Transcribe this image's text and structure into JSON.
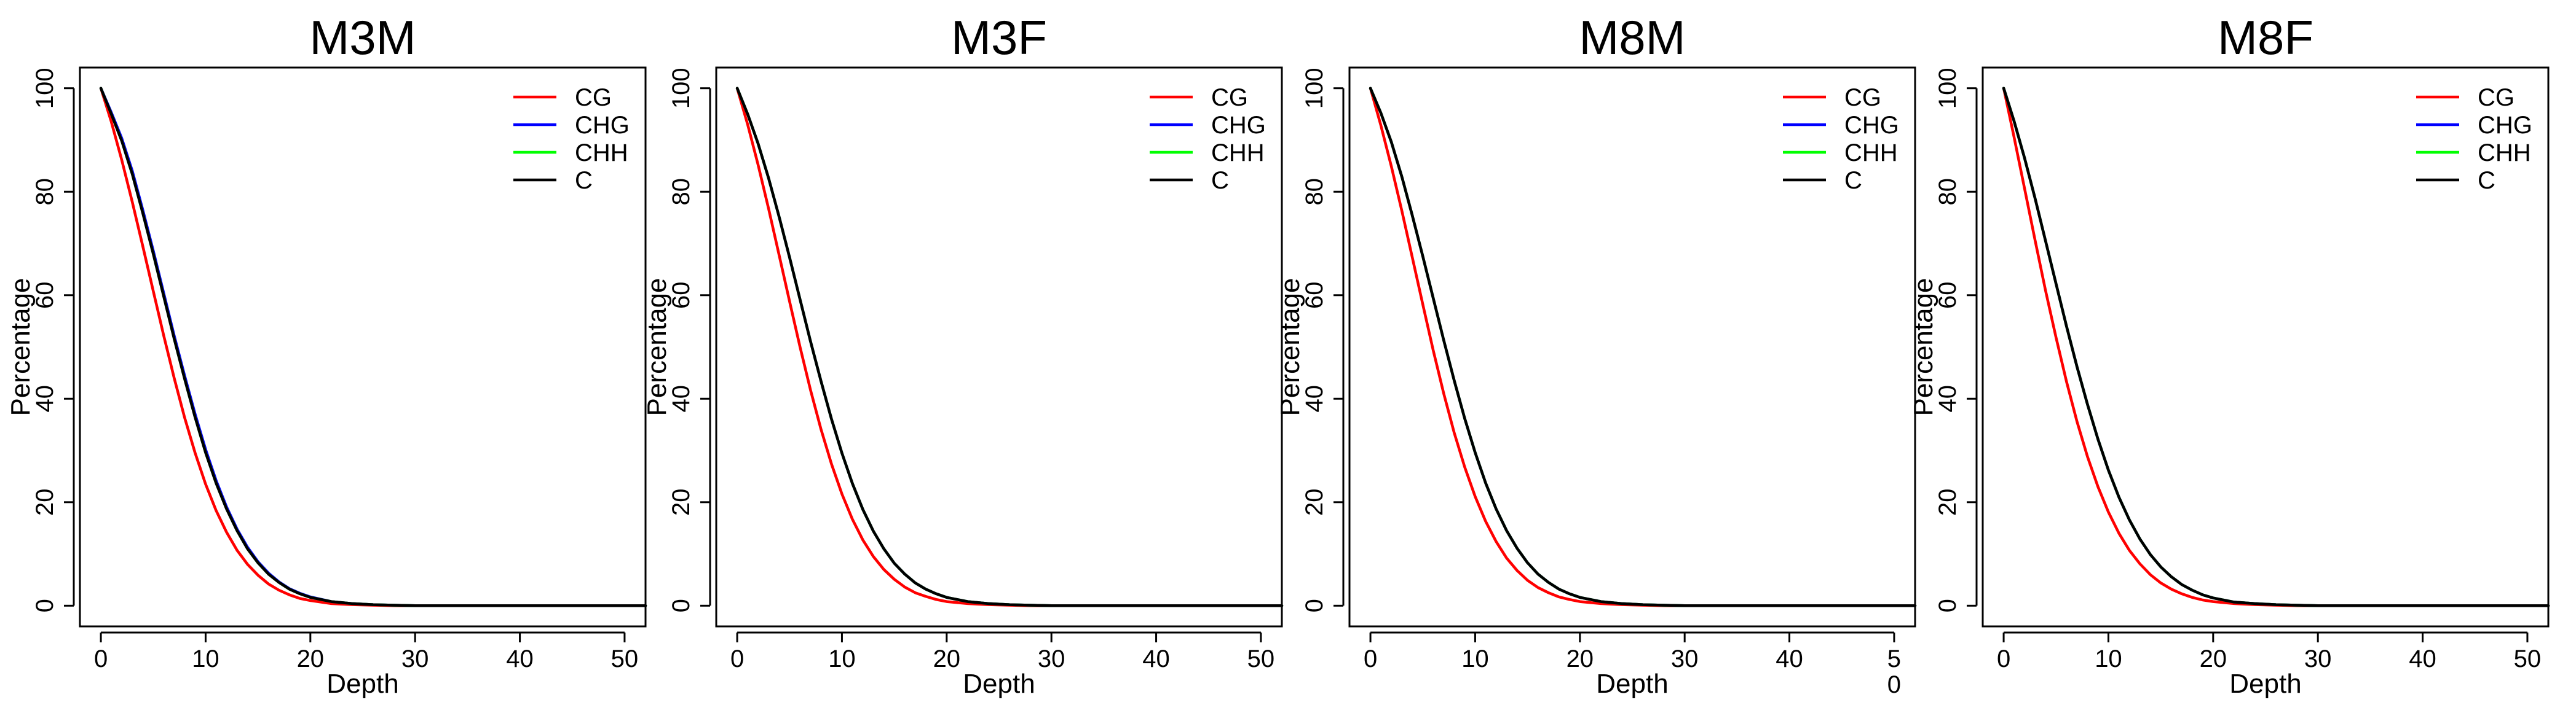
{
  "chart_data": [
    {
      "type": "line",
      "title": "M3M",
      "xlabel": "Depth",
      "ylabel": "Percentage",
      "xlim": [
        -2,
        52
      ],
      "ylim": [
        -4,
        104
      ],
      "xticks": [
        0,
        10,
        20,
        30,
        40,
        50
      ],
      "yticks": [
        0,
        20,
        40,
        60,
        80,
        100
      ],
      "xtick_labels": [
        "0",
        "10",
        "20",
        "30",
        "40",
        "50"
      ],
      "legend_position": "top-right",
      "x": [
        0,
        1,
        2,
        3,
        4,
        5,
        6,
        7,
        8,
        9,
        10,
        11,
        12,
        13,
        14,
        15,
        16,
        17,
        18,
        19,
        20,
        22,
        24,
        26,
        28,
        30,
        35,
        40,
        45,
        52
      ],
      "series": [
        {
          "name": "CG",
          "color": "#ff0000",
          "values": [
            100,
            93.5,
            86.1,
            78.0,
            69.5,
            60.8,
            52.2,
            44.0,
            36.3,
            29.5,
            23.5,
            18.4,
            14.2,
            10.7,
            8.0,
            5.9,
            4.2,
            3.0,
            2.1,
            1.4,
            1.0,
            0.4,
            0.2,
            0.1,
            0.0,
            0.0,
            0.0,
            0.0,
            0.0,
            0.0
          ]
        },
        {
          "name": "CHG",
          "color": "#0000ff",
          "values": [
            100,
            95.3,
            90.3,
            84.0,
            76.5,
            68.6,
            60.4,
            52.2,
            44.4,
            37.0,
            30.2,
            24.2,
            19.1,
            14.8,
            11.3,
            8.5,
            6.3,
            4.6,
            3.3,
            2.4,
            1.7,
            0.8,
            0.4,
            0.2,
            0.1,
            0.0,
            0.0,
            0.0,
            0.0,
            0.0
          ]
        },
        {
          "name": "CHH",
          "color": "#00ff00",
          "values": [
            100,
            95.0,
            89.8,
            83.4,
            75.9,
            68.0,
            59.8,
            51.6,
            43.8,
            36.4,
            29.6,
            23.7,
            18.7,
            14.5,
            11.0,
            8.3,
            6.1,
            4.5,
            3.2,
            2.3,
            1.6,
            0.8,
            0.4,
            0.2,
            0.1,
            0.0,
            0.0,
            0.0,
            0.0,
            0.0
          ]
        },
        {
          "name": "C",
          "color": "#000000",
          "values": [
            100,
            95.0,
            89.8,
            83.4,
            75.9,
            68.0,
            59.8,
            51.6,
            43.8,
            36.4,
            29.6,
            23.7,
            18.7,
            14.5,
            11.0,
            8.3,
            6.1,
            4.5,
            3.2,
            2.3,
            1.6,
            0.8,
            0.4,
            0.2,
            0.1,
            0.0,
            0.0,
            0.0,
            0.0,
            0.0
          ]
        }
      ]
    },
    {
      "type": "line",
      "title": "M3F",
      "xlabel": "Depth",
      "ylabel": "Percentage",
      "xlim": [
        -2,
        52
      ],
      "ylim": [
        -4,
        104
      ],
      "xticks": [
        0,
        10,
        20,
        30,
        40,
        50
      ],
      "yticks": [
        0,
        20,
        40,
        60,
        80,
        100
      ],
      "xtick_labels": [
        "0",
        "10",
        "20",
        "30",
        "40",
        "50"
      ],
      "legend_position": "top-right",
      "x": [
        0,
        1,
        2,
        3,
        4,
        5,
        6,
        7,
        8,
        9,
        10,
        11,
        12,
        13,
        14,
        15,
        16,
        17,
        18,
        19,
        20,
        22,
        24,
        26,
        28,
        30,
        35,
        40,
        45,
        52
      ],
      "series": [
        {
          "name": "CG",
          "color": "#ff0000",
          "values": [
            100,
            93.0,
            85.2,
            76.7,
            67.8,
            58.8,
            50.0,
            41.7,
            34.1,
            27.4,
            21.6,
            16.7,
            12.7,
            9.5,
            7.0,
            5.1,
            3.6,
            2.5,
            1.8,
            1.2,
            0.8,
            0.4,
            0.2,
            0.1,
            0.0,
            0.0,
            0.0,
            0.0,
            0.0,
            0.0
          ]
        },
        {
          "name": "CHG",
          "color": "#0000ff",
          "values": [
            100,
            95.0,
            89.3,
            82.6,
            75.2,
            67.3,
            59.2,
            51.1,
            43.4,
            36.1,
            29.5,
            23.6,
            18.6,
            14.4,
            11.0,
            8.2,
            6.1,
            4.4,
            3.2,
            2.3,
            1.6,
            0.8,
            0.4,
            0.2,
            0.1,
            0.0,
            0.0,
            0.0,
            0.0,
            0.0
          ]
        },
        {
          "name": "CHH",
          "color": "#00ff00",
          "values": [
            100,
            95.0,
            89.3,
            82.6,
            75.2,
            67.3,
            59.2,
            51.1,
            43.4,
            36.1,
            29.5,
            23.6,
            18.6,
            14.4,
            11.0,
            8.2,
            6.1,
            4.4,
            3.2,
            2.3,
            1.6,
            0.8,
            0.4,
            0.2,
            0.1,
            0.0,
            0.0,
            0.0,
            0.0,
            0.0
          ]
        },
        {
          "name": "C",
          "color": "#000000",
          "values": [
            100,
            95.0,
            89.3,
            82.6,
            75.2,
            67.3,
            59.2,
            51.1,
            43.4,
            36.1,
            29.5,
            23.6,
            18.6,
            14.4,
            11.0,
            8.2,
            6.1,
            4.4,
            3.2,
            2.3,
            1.6,
            0.8,
            0.4,
            0.2,
            0.1,
            0.0,
            0.0,
            0.0,
            0.0,
            0.0
          ]
        }
      ]
    },
    {
      "type": "line",
      "title": "M8M",
      "xlabel": "Depth",
      "ylabel": "Percentage",
      "xlim": [
        -2,
        52
      ],
      "ylim": [
        -4,
        104
      ],
      "xticks": [
        0,
        10,
        20,
        30,
        40,
        50
      ],
      "yticks": [
        0,
        20,
        40,
        60,
        80,
        100
      ],
      "xtick_labels": [
        "0",
        "10",
        "20",
        "30",
        "40",
        "5\n0"
      ],
      "legend_position": "top-right",
      "x": [
        0,
        1,
        2,
        3,
        4,
        5,
        6,
        7,
        8,
        9,
        10,
        11,
        12,
        13,
        14,
        15,
        16,
        17,
        18,
        19,
        20,
        22,
        24,
        26,
        28,
        30,
        35,
        40,
        45,
        52
      ],
      "series": [
        {
          "name": "CG",
          "color": "#ff0000",
          "values": [
            100,
            92.8,
            84.9,
            76.3,
            67.3,
            58.2,
            49.3,
            41.0,
            33.4,
            26.8,
            21.1,
            16.3,
            12.4,
            9.2,
            6.8,
            4.9,
            3.5,
            2.5,
            1.7,
            1.2,
            0.8,
            0.4,
            0.2,
            0.1,
            0.0,
            0.0,
            0.0,
            0.0,
            0.0,
            0.0
          ]
        },
        {
          "name": "CHG",
          "color": "#0000ff",
          "values": [
            100,
            95.2,
            89.6,
            82.9,
            75.4,
            67.5,
            59.4,
            51.3,
            43.5,
            36.2,
            29.6,
            23.7,
            18.7,
            14.5,
            11.1,
            8.3,
            6.1,
            4.5,
            3.2,
            2.3,
            1.6,
            0.8,
            0.4,
            0.2,
            0.1,
            0.0,
            0.0,
            0.0,
            0.0,
            0.0
          ]
        },
        {
          "name": "CHH",
          "color": "#00ff00",
          "values": [
            100,
            95.2,
            89.6,
            82.9,
            75.4,
            67.5,
            59.4,
            51.3,
            43.5,
            36.2,
            29.6,
            23.7,
            18.7,
            14.5,
            11.1,
            8.3,
            6.1,
            4.5,
            3.2,
            2.3,
            1.6,
            0.8,
            0.4,
            0.2,
            0.1,
            0.0,
            0.0,
            0.0,
            0.0,
            0.0
          ]
        },
        {
          "name": "C",
          "color": "#000000",
          "values": [
            100,
            95.2,
            89.6,
            82.9,
            75.4,
            67.5,
            59.4,
            51.3,
            43.5,
            36.2,
            29.6,
            23.7,
            18.7,
            14.5,
            11.1,
            8.3,
            6.1,
            4.5,
            3.2,
            2.3,
            1.6,
            0.8,
            0.4,
            0.2,
            0.1,
            0.0,
            0.0,
            0.0,
            0.0,
            0.0
          ]
        }
      ]
    },
    {
      "type": "line",
      "title": "M8F",
      "xlabel": "Depth",
      "ylabel": "Percentage",
      "xlim": [
        -2,
        52
      ],
      "ylim": [
        -4,
        104
      ],
      "xticks": [
        0,
        10,
        20,
        30,
        40,
        50
      ],
      "yticks": [
        0,
        20,
        40,
        60,
        80,
        100
      ],
      "xtick_labels": [
        "0",
        "10",
        "20",
        "30",
        "40",
        "50"
      ],
      "legend_position": "top-right",
      "x": [
        0,
        1,
        2,
        3,
        4,
        5,
        6,
        7,
        8,
        9,
        10,
        11,
        12,
        13,
        14,
        15,
        16,
        17,
        18,
        19,
        20,
        22,
        24,
        26,
        28,
        30,
        35,
        40,
        45,
        52
      ],
      "series": [
        {
          "name": "CG",
          "color": "#ff0000",
          "values": [
            100,
            90.5,
            80.6,
            70.6,
            60.9,
            51.8,
            43.3,
            35.6,
            28.8,
            23.0,
            18.1,
            14.0,
            10.7,
            8.1,
            6.0,
            4.4,
            3.2,
            2.3,
            1.6,
            1.1,
            0.8,
            0.4,
            0.2,
            0.1,
            0.0,
            0.0,
            0.0,
            0.0,
            0.0,
            0.0
          ]
        },
        {
          "name": "CHG",
          "color": "#0000ff",
          "values": [
            100,
            93.6,
            86.5,
            78.7,
            70.5,
            62.2,
            54.0,
            46.2,
            38.9,
            32.2,
            26.2,
            21.0,
            16.6,
            12.9,
            9.9,
            7.5,
            5.6,
            4.1,
            3.0,
            2.1,
            1.5,
            0.7,
            0.4,
            0.2,
            0.1,
            0.0,
            0.0,
            0.0,
            0.0,
            0.0
          ]
        },
        {
          "name": "CHH",
          "color": "#00ff00",
          "values": [
            100,
            93.6,
            86.5,
            78.7,
            70.5,
            62.2,
            54.0,
            46.2,
            38.9,
            32.2,
            26.2,
            21.0,
            16.6,
            12.9,
            9.9,
            7.5,
            5.6,
            4.1,
            3.0,
            2.1,
            1.5,
            0.7,
            0.4,
            0.2,
            0.1,
            0.0,
            0.0,
            0.0,
            0.0,
            0.0
          ]
        },
        {
          "name": "C",
          "color": "#000000",
          "values": [
            100,
            93.6,
            86.5,
            78.7,
            70.5,
            62.2,
            54.0,
            46.2,
            38.9,
            32.2,
            26.2,
            21.0,
            16.6,
            12.9,
            9.9,
            7.5,
            5.6,
            4.1,
            3.0,
            2.1,
            1.5,
            0.7,
            0.4,
            0.2,
            0.1,
            0.0,
            0.0,
            0.0,
            0.0,
            0.0
          ]
        }
      ]
    }
  ]
}
